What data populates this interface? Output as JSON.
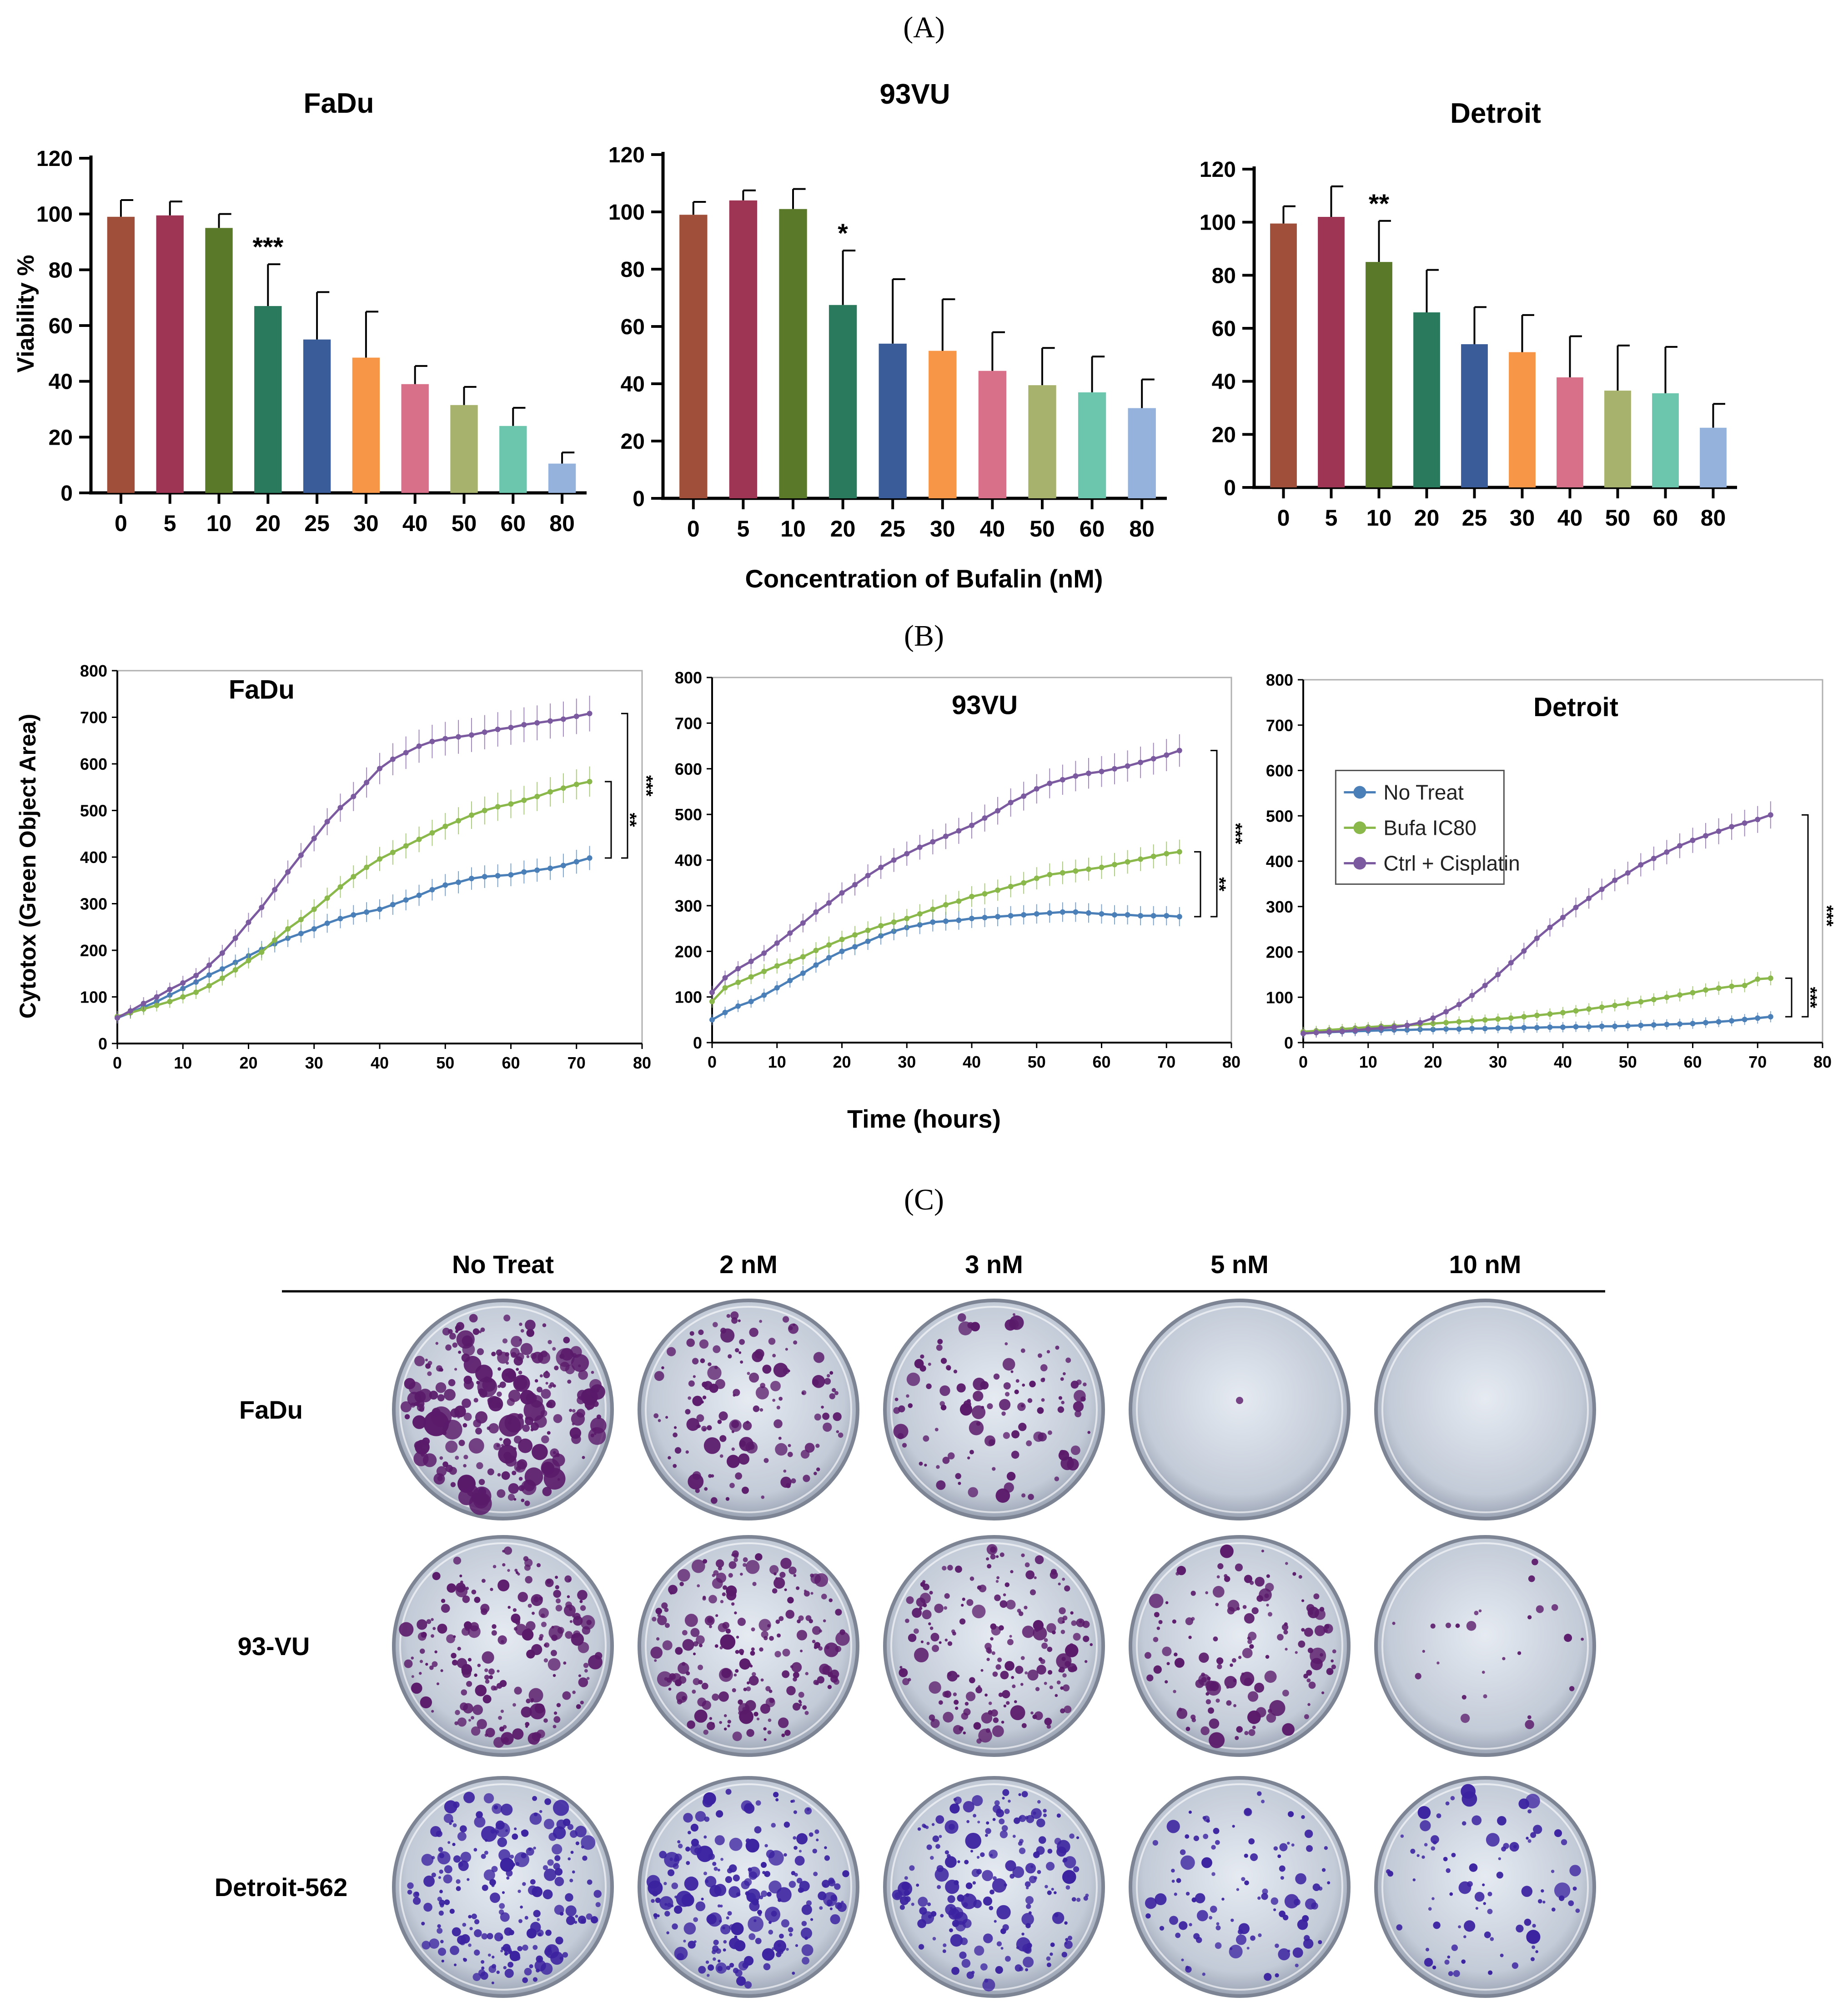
{
  "panel_labels": {
    "a": "(A)",
    "b": "(B)",
    "c": "(C)"
  },
  "shared_labels": {
    "viability_ylabel": "Viability %",
    "bufalin_xlabel": "Concentration of Bufalin (nM)",
    "cytotox_ylabel": "Cytotox (Green Object Area)",
    "time_xlabel": "Time (hours)"
  },
  "colors": {
    "bars": [
      "#a0503a",
      "#9e3554",
      "#5a7a2a",
      "#2a7a5e",
      "#3a5d99",
      "#f89648",
      "#d8708a",
      "#a7b26c",
      "#6cc6ae",
      "#95b2dd"
    ],
    "no_treat": "#4a7fb8",
    "bufa_ic80": "#8ab84a",
    "ctrl_cisplatin": "#7b5aa0",
    "plate_stain_purple": "#5a1a6a",
    "plate_stain_blue": "#3b22a0"
  },
  "chart_data": [
    {
      "type": "bar",
      "title": "FaDu",
      "ylabel": "Viability %",
      "categories": [
        "0",
        "5",
        "10",
        "20",
        "25",
        "30",
        "40",
        "50",
        "60",
        "80"
      ],
      "values": [
        99,
        99.5,
        95,
        67,
        55,
        48.5,
        39,
        31.5,
        24,
        10.5
      ],
      "errors": [
        6,
        5,
        5,
        15,
        17,
        16.5,
        6.5,
        6.5,
        6.5,
        4
      ],
      "significance": [
        {
          "index": 3,
          "label": "***"
        }
      ],
      "ylim": [
        0,
        120
      ],
      "yticks": [
        0,
        20,
        40,
        60,
        80,
        100,
        120
      ]
    },
    {
      "type": "bar",
      "title": "93VU",
      "categories": [
        "0",
        "5",
        "10",
        "20",
        "25",
        "30",
        "40",
        "50",
        "60",
        "80"
      ],
      "values": [
        99,
        104,
        101,
        67.5,
        54,
        51.5,
        44.5,
        39.5,
        37,
        31.5
      ],
      "errors": [
        4.5,
        3.5,
        7,
        19,
        22.5,
        18,
        13.5,
        13,
        12.5,
        10
      ],
      "significance": [
        {
          "index": 3,
          "label": "*"
        }
      ],
      "ylim": [
        0,
        120
      ],
      "yticks": [
        0,
        20,
        40,
        60,
        80,
        100,
        120
      ]
    },
    {
      "type": "bar",
      "title": "Detroit",
      "categories": [
        "0",
        "5",
        "10",
        "20",
        "25",
        "30",
        "40",
        "50",
        "60",
        "80"
      ],
      "values": [
        99.5,
        102,
        85,
        66,
        54,
        51,
        41.5,
        36.5,
        35.5,
        22.5
      ],
      "errors": [
        6.5,
        11.5,
        15.5,
        16,
        14,
        14,
        15.5,
        17,
        17.5,
        9
      ],
      "significance": [
        {
          "index": 2,
          "label": "**"
        }
      ],
      "ylim": [
        0,
        120
      ],
      "yticks": [
        0,
        20,
        40,
        60,
        80,
        100,
        120
      ]
    },
    {
      "type": "line",
      "title": "FaDu",
      "ylabel": "Cytotox (Green Object Area)",
      "xlim": [
        0,
        80
      ],
      "ylim": [
        0,
        800
      ],
      "xticks": [
        0,
        10,
        20,
        30,
        40,
        50,
        60,
        70,
        80
      ],
      "yticks": [
        0,
        100,
        200,
        300,
        400,
        500,
        600,
        700,
        800
      ],
      "x": [
        0,
        2,
        4,
        6,
        8,
        10,
        12,
        14,
        16,
        18,
        20,
        22,
        24,
        26,
        28,
        30,
        32,
        34,
        36,
        38,
        40,
        42,
        44,
        46,
        48,
        50,
        52,
        54,
        56,
        58,
        60,
        62,
        64,
        66,
        68,
        70,
        72
      ],
      "series": [
        {
          "name": "No Treat",
          "values": [
            55,
            66,
            78,
            90,
            104,
            118,
            132,
            147,
            160,
            174,
            188,
            202,
            214,
            226,
            236,
            246,
            258,
            268,
            276,
            282,
            288,
            298,
            308,
            318,
            330,
            340,
            346,
            354,
            358,
            360,
            362,
            368,
            372,
            376,
            382,
            390,
            398
          ]
        },
        {
          "name": "Bufa IC80",
          "values": [
            58,
            66,
            74,
            82,
            90,
            100,
            110,
            124,
            140,
            158,
            178,
            196,
            222,
            246,
            266,
            288,
            312,
            336,
            358,
            378,
            396,
            410,
            424,
            438,
            452,
            466,
            478,
            490,
            500,
            508,
            514,
            522,
            530,
            540,
            548,
            556,
            562
          ]
        },
        {
          "name": "Ctrl + Cisplatin",
          "values": [
            55,
            70,
            86,
            100,
            116,
            130,
            146,
            168,
            194,
            226,
            260,
            292,
            330,
            368,
            404,
            440,
            476,
            506,
            530,
            560,
            590,
            610,
            624,
            638,
            648,
            654,
            658,
            662,
            668,
            674,
            678,
            684,
            688,
            692,
            696,
            702,
            708
          ]
        }
      ],
      "significance": [
        {
          "label": "**"
        },
        {
          "label": "***"
        }
      ]
    },
    {
      "type": "line",
      "title": "93VU",
      "xlim": [
        0,
        80
      ],
      "ylim": [
        0,
        800
      ],
      "xticks": [
        0,
        10,
        20,
        30,
        40,
        50,
        60,
        70,
        80
      ],
      "yticks": [
        0,
        100,
        200,
        300,
        400,
        500,
        600,
        700,
        800
      ],
      "x": [
        0,
        2,
        4,
        6,
        8,
        10,
        12,
        14,
        16,
        18,
        20,
        22,
        24,
        26,
        28,
        30,
        32,
        34,
        36,
        38,
        40,
        42,
        44,
        46,
        48,
        50,
        52,
        54,
        56,
        58,
        60,
        62,
        64,
        66,
        68,
        70,
        72
      ],
      "series": [
        {
          "name": "No Treat",
          "values": [
            50,
            66,
            80,
            90,
            104,
            120,
            136,
            152,
            170,
            186,
            200,
            210,
            222,
            234,
            244,
            252,
            258,
            264,
            266,
            268,
            272,
            274,
            276,
            278,
            280,
            282,
            284,
            286,
            286,
            284,
            282,
            280,
            280,
            278,
            278,
            278,
            276
          ]
        },
        {
          "name": "Bufa IC80",
          "values": [
            90,
            120,
            132,
            144,
            156,
            168,
            178,
            188,
            202,
            214,
            226,
            236,
            246,
            256,
            264,
            272,
            282,
            292,
            302,
            310,
            320,
            326,
            334,
            342,
            350,
            360,
            368,
            372,
            376,
            380,
            384,
            390,
            396,
            402,
            408,
            414,
            418
          ]
        },
        {
          "name": "Ctrl + Cisplatin",
          "values": [
            110,
            142,
            162,
            178,
            196,
            218,
            240,
            262,
            286,
            306,
            328,
            346,
            366,
            384,
            400,
            414,
            428,
            440,
            452,
            464,
            476,
            492,
            508,
            526,
            540,
            556,
            568,
            576,
            584,
            590,
            594,
            600,
            606,
            614,
            622,
            630,
            640
          ]
        }
      ],
      "significance": [
        {
          "label": "**"
        },
        {
          "label": "***"
        }
      ]
    },
    {
      "type": "line",
      "title": "Detroit",
      "xlim": [
        0,
        80
      ],
      "ylim": [
        0,
        800
      ],
      "xticks": [
        0,
        10,
        20,
        30,
        40,
        50,
        60,
        70,
        80
      ],
      "yticks": [
        0,
        100,
        200,
        300,
        400,
        500,
        600,
        700,
        800
      ],
      "legend": {
        "position": "top-left",
        "entries": [
          "No Treat",
          "Bufa IC80",
          "Ctrl + Cisplatin"
        ]
      },
      "x": [
        0,
        2,
        4,
        6,
        8,
        10,
        12,
        14,
        16,
        18,
        20,
        22,
        24,
        26,
        28,
        30,
        32,
        34,
        36,
        38,
        40,
        42,
        44,
        46,
        48,
        50,
        52,
        54,
        56,
        58,
        60,
        62,
        64,
        66,
        68,
        70,
        72
      ],
      "series": [
        {
          "name": "No Treat",
          "values": [
            20,
            22,
            23,
            24,
            25,
            26,
            27,
            28,
            28,
            29,
            29,
            30,
            30,
            31,
            31,
            32,
            32,
            33,
            33,
            34,
            34,
            35,
            35,
            36,
            36,
            37,
            38,
            39,
            40,
            41,
            42,
            44,
            46,
            48,
            51,
            54,
            57
          ]
        },
        {
          "name": "Bufa IC80",
          "values": [
            24,
            26,
            28,
            30,
            32,
            34,
            36,
            37,
            38,
            40,
            42,
            44,
            46,
            48,
            50,
            52,
            54,
            57,
            60,
            63,
            66,
            70,
            74,
            78,
            82,
            86,
            90,
            95,
            100,
            105,
            110,
            116,
            120,
            124,
            126,
            140,
            142
          ]
        },
        {
          "name": "Ctrl + Cisplatin",
          "values": [
            20,
            22,
            24,
            25,
            27,
            30,
            32,
            34,
            38,
            44,
            54,
            68,
            84,
            104,
            126,
            150,
            176,
            202,
            230,
            254,
            276,
            298,
            318,
            338,
            358,
            374,
            392,
            406,
            420,
            434,
            446,
            456,
            466,
            476,
            484,
            492,
            502
          ]
        }
      ],
      "significance": [
        {
          "label": "***"
        },
        {
          "label": "***"
        }
      ]
    }
  ],
  "colony_panel": {
    "columns": [
      "No Treat",
      "2 nM",
      "3 nM",
      "5 nM",
      "10 nM"
    ],
    "rows": [
      "FaDu",
      "93-VU",
      "Detroit-562"
    ],
    "density": [
      [
        1.0,
        0.55,
        0.45,
        0.0,
        0.0
      ],
      [
        0.8,
        0.85,
        0.75,
        0.55,
        0.1
      ],
      [
        0.85,
        0.85,
        0.8,
        0.4,
        0.35
      ]
    ],
    "stain": [
      "purple",
      "purple",
      "blue"
    ]
  }
}
